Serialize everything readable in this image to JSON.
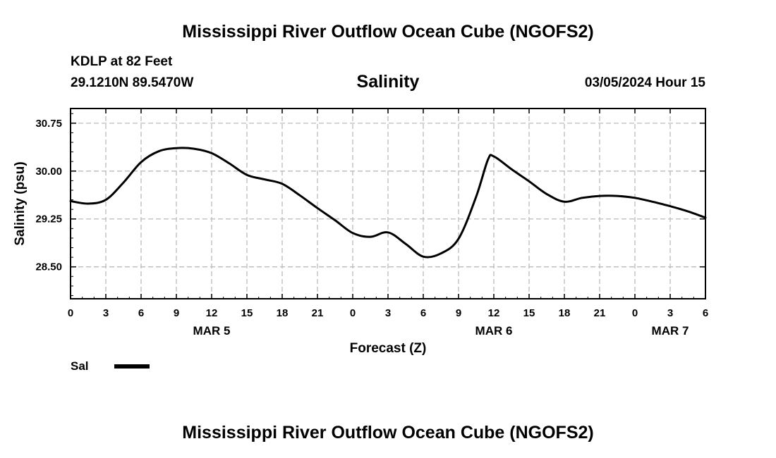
{
  "header": {
    "title": "Mississippi River Outflow Ocean Cube (NGOFS2)",
    "station": "KDLP at 82 Feet",
    "coords": "29.1210N  89.5470W",
    "variable": "Salinity",
    "datetime": "03/05/2024 Hour 15"
  },
  "footer": {
    "title": "Mississippi River Outflow Ocean Cube (NGOFS2)"
  },
  "legend": {
    "label": "Sal"
  },
  "chart_data": {
    "type": "line",
    "title": "Salinity",
    "xlabel": "Forecast (Z)",
    "ylabel": "Salinity (psu)",
    "x_unit": "hours from MAR 5 00Z",
    "xlim": [
      0,
      54
    ],
    "ylim": [
      28.0,
      30.98
    ],
    "x_ticks": [
      0,
      3,
      6,
      9,
      12,
      15,
      18,
      21,
      24,
      27,
      30,
      33,
      36,
      39,
      42,
      45,
      48,
      51,
      54
    ],
    "x_tick_labels": [
      "0",
      "3",
      "6",
      "9",
      "12",
      "15",
      "18",
      "21",
      "0",
      "3",
      "6",
      "9",
      "12",
      "15",
      "18",
      "21",
      "0",
      "3",
      "6"
    ],
    "y_ticks": [
      28.5,
      29.25,
      30.0,
      30.75
    ],
    "y_tick_labels": [
      "28.50",
      "29.25",
      "30.00",
      "30.75"
    ],
    "date_labels": [
      {
        "x": 12,
        "label": "MAR 5"
      },
      {
        "x": 36,
        "label": "MAR 6"
      },
      {
        "x": 51,
        "label": "MAR 7"
      }
    ],
    "grid": true,
    "legend_position": "bottom-left",
    "series": [
      {
        "name": "Sal",
        "color": "#000000",
        "x": [
          0,
          1.5,
          3,
          4.5,
          6,
          7.5,
          9,
          10.5,
          12,
          13.5,
          15,
          16.5,
          18,
          19.5,
          21,
          22.5,
          24,
          25.5,
          27,
          28.5,
          30,
          31.5,
          33,
          34.5,
          35.5,
          36,
          37.5,
          39,
          40.5,
          42,
          43.5,
          45,
          46.5,
          48,
          49.5,
          51,
          52.5,
          54
        ],
        "y": [
          29.53,
          29.49,
          29.55,
          29.82,
          30.14,
          30.31,
          30.36,
          30.35,
          30.28,
          30.12,
          29.94,
          29.87,
          29.8,
          29.62,
          29.42,
          29.23,
          29.03,
          28.97,
          29.04,
          28.86,
          28.66,
          28.71,
          28.94,
          29.6,
          30.18,
          30.23,
          30.03,
          29.84,
          29.64,
          29.52,
          29.58,
          29.61,
          29.61,
          29.58,
          29.52,
          29.45,
          29.37,
          29.27
        ]
      }
    ]
  }
}
